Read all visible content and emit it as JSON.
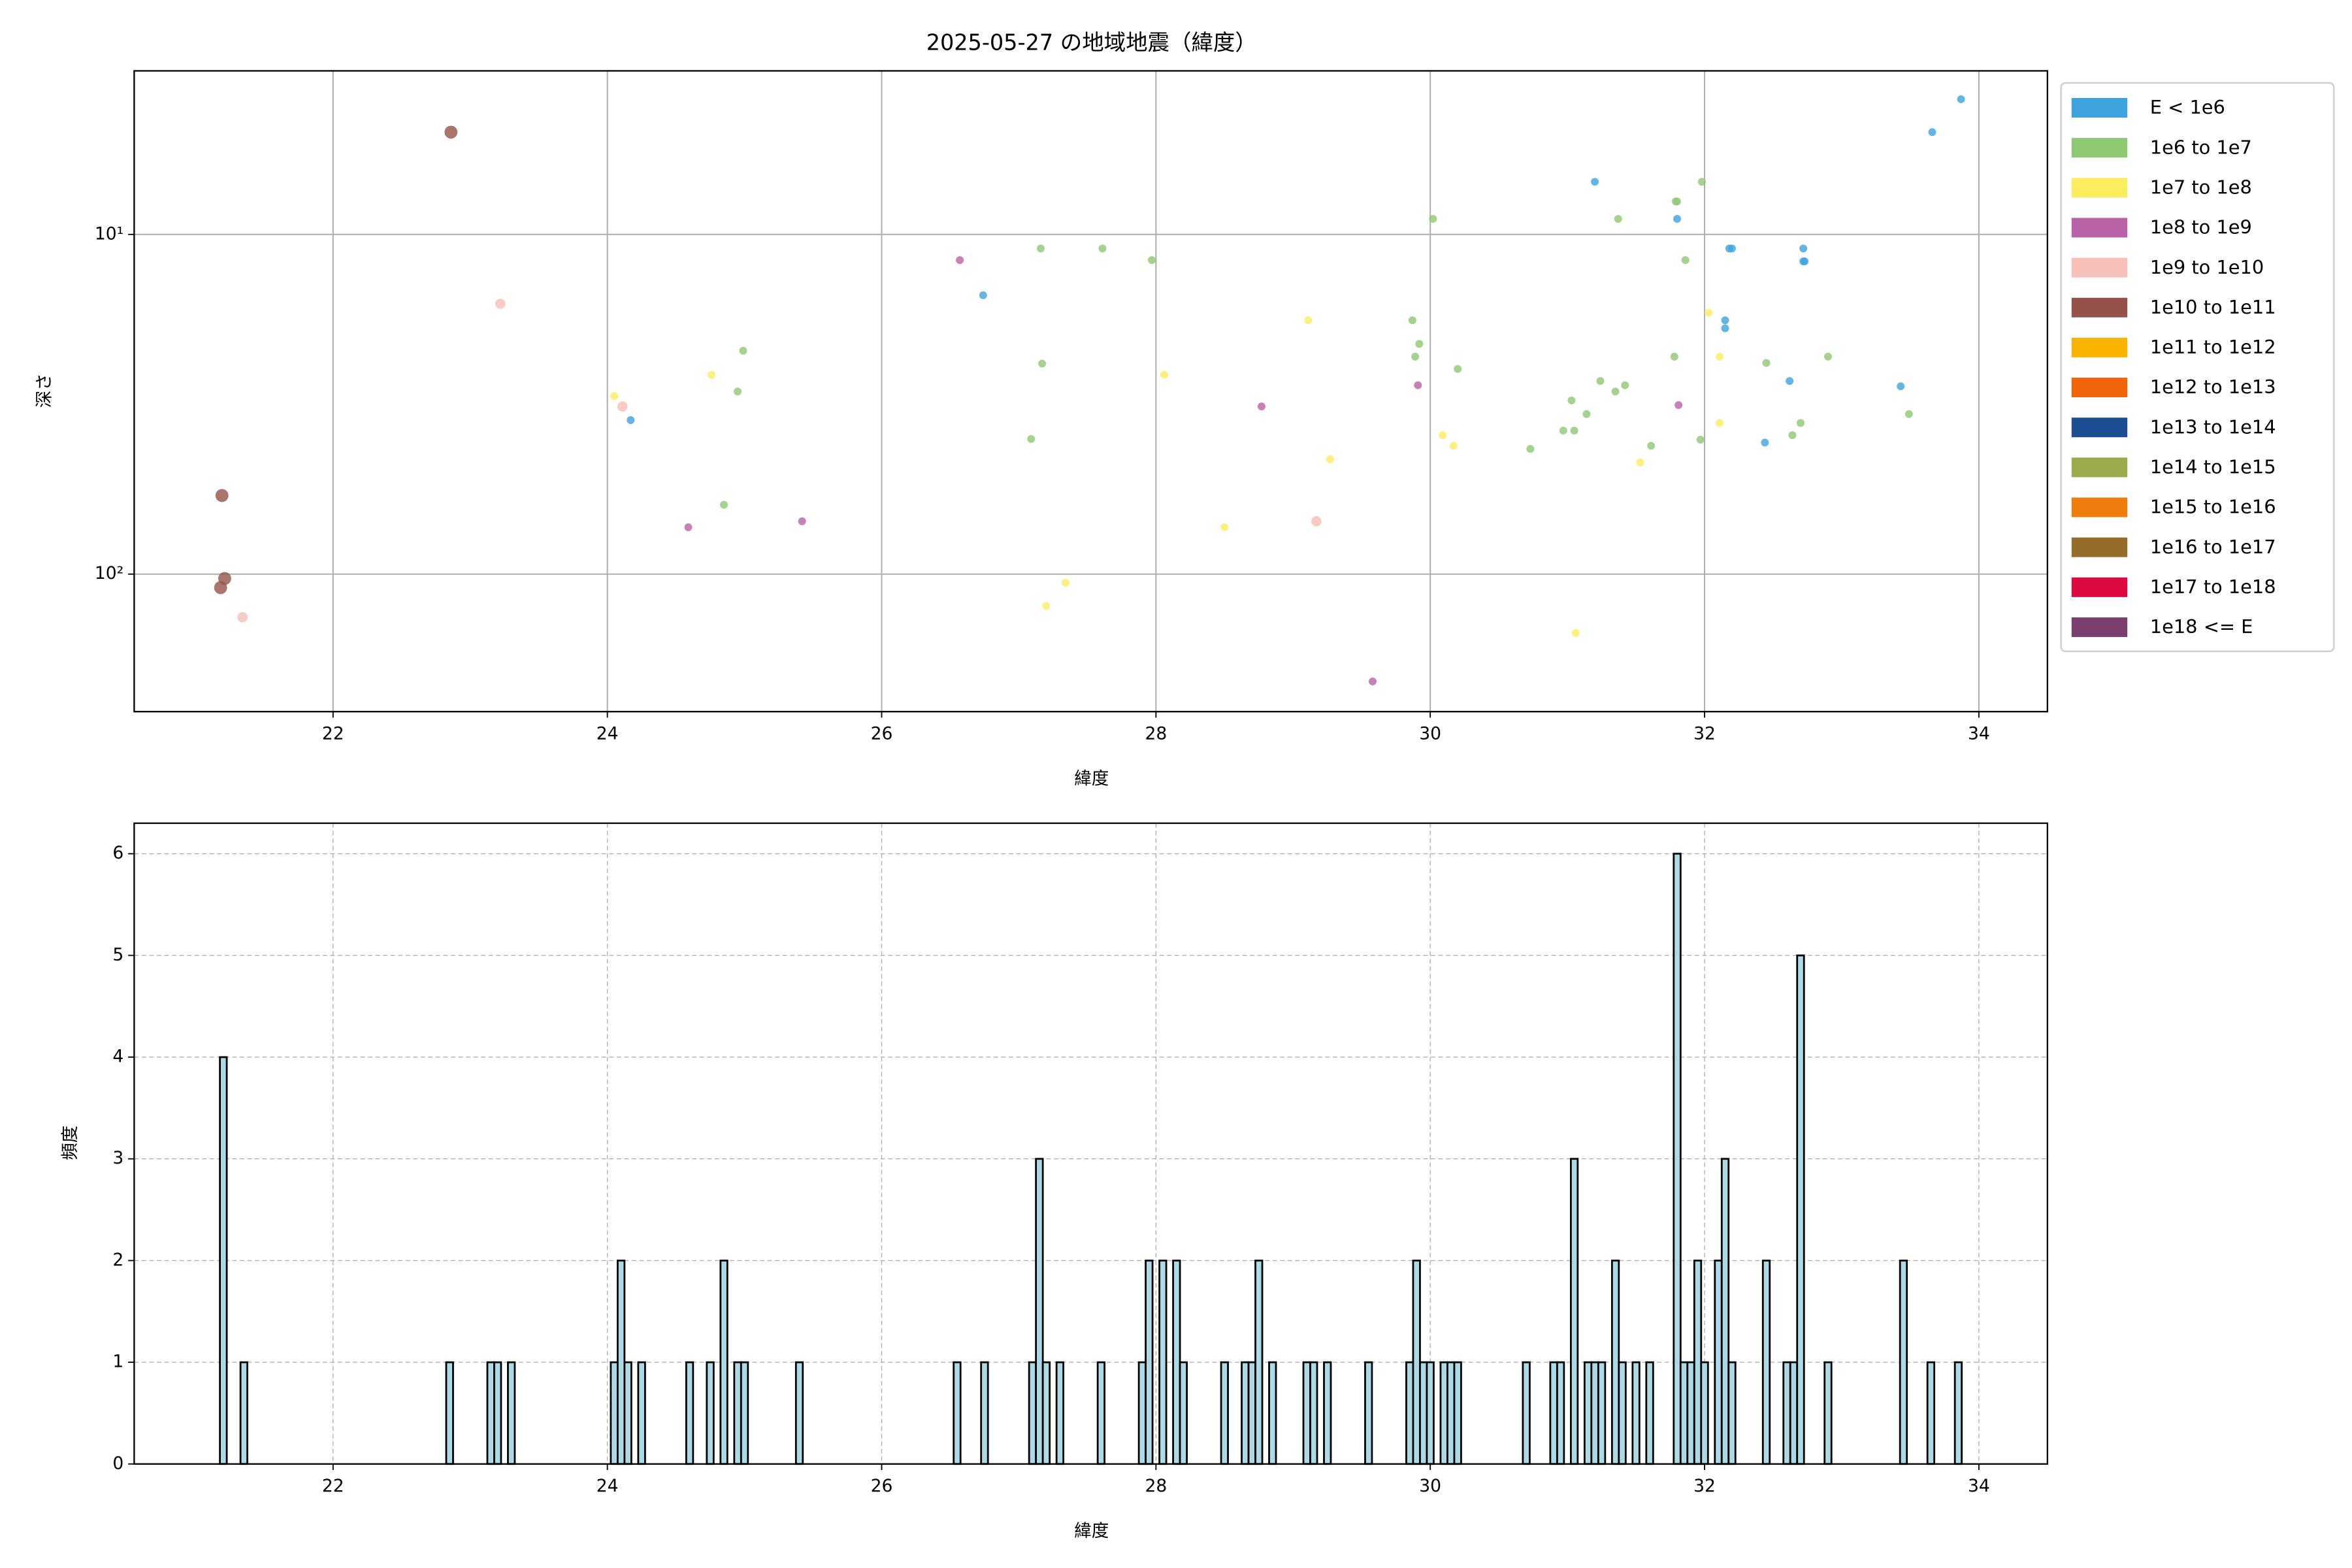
{
  "chart_data": [
    {
      "type": "scatter",
      "title": "2025-05-27 の地域地震（緯度）",
      "xlabel": "緯度",
      "ylabel": "深さ",
      "xlim": [
        20.55,
        34.5
      ],
      "xticks": [
        22,
        24,
        26,
        28,
        30,
        32,
        34
      ],
      "ylim": [
        3.3,
        254
      ],
      "yticks": [
        {
          "value": 10,
          "label": "10¹"
        },
        {
          "value": 100,
          "label": "10²"
        }
      ],
      "yscale": "log",
      "y_inverted": true,
      "grid": true,
      "legend": "outside-right",
      "series": [
        {
          "name": "E < 1e6",
          "color": "#3ea2dc",
          "x": [
            31.2,
            26.74,
            24.17,
            31.8,
            32.15,
            32.15,
            32.18,
            32.2,
            32.62,
            32.72,
            32.72,
            32.73,
            32.44,
            33.43,
            33.66,
            33.87
          ],
          "y": [
            7.0,
            15.1,
            35.2,
            9.0,
            17.9,
            18.9,
            11.0,
            11.0,
            27.0,
            11.0,
            12.0,
            12.0,
            41.0,
            28.0,
            5.0,
            4.0
          ]
        },
        {
          "name": "1e6 to 1e7",
          "color": "#8fc873",
          "x": [
            24.85,
            24.95,
            24.99,
            27.09,
            27.16,
            27.17,
            27.61,
            27.97,
            29.87,
            29.92,
            29.89,
            30.02,
            30.2,
            30.73,
            30.97,
            31.03,
            31.05,
            31.14,
            31.24,
            31.35,
            31.37,
            31.42,
            31.61,
            31.78,
            31.79,
            31.8,
            31.86,
            31.97,
            31.98,
            32.45,
            32.64,
            32.7,
            32.9,
            33.49
          ],
          "y": [
            62.5,
            29.0,
            22.0,
            40.0,
            11.0,
            24.0,
            11.0,
            11.9,
            17.9,
            21.0,
            22.9,
            9.0,
            24.9,
            42.8,
            37.8,
            30.8,
            37.8,
            33.8,
            27.0,
            29.0,
            9.0,
            27.8,
            41.9,
            22.9,
            8.0,
            8.0,
            11.9,
            40.2,
            7.0,
            23.9,
            39.0,
            35.9,
            22.9,
            33.8
          ]
        },
        {
          "name": "1e7 to 1e8",
          "color": "#fcec60",
          "x": [
            24.05,
            24.76,
            27.2,
            27.34,
            28.06,
            28.5,
            29.11,
            29.27,
            30.09,
            30.17,
            31.06,
            31.53,
            32.03,
            32.11,
            32.11
          ],
          "y": [
            29.9,
            25.9,
            124,
            106,
            25.9,
            72.8,
            17.9,
            45.9,
            39.0,
            41.9,
            149,
            46.9,
            17.0,
            22.9,
            35.9
          ]
        },
        {
          "name": "1e8 to 1e9",
          "color": "#b962a7",
          "x": [
            24.59,
            25.42,
            26.57,
            28.77,
            29.58,
            29.91,
            31.81
          ],
          "y": [
            72.8,
            69.9,
            11.9,
            32.1,
            207,
            27.8,
            31.8
          ]
        },
        {
          "name": "1e9 to 1e10",
          "color": "#f6bfb8",
          "x": [
            21.34,
            23.22,
            24.11,
            29.17
          ],
          "y": [
            134,
            16.0,
            32.1,
            69.9
          ]
        },
        {
          "name": "1e10 to 1e11",
          "color": "#94524a",
          "x": [
            21.19,
            21.18,
            21.21,
            22.86
          ],
          "y": [
            58.7,
            109.6,
            103,
            5.0
          ]
        },
        {
          "name": "1e11 to 1e12",
          "color": "#f8b400",
          "x": [],
          "y": []
        },
        {
          "name": "1e12 to 1e13",
          "color": "#ef6309",
          "x": [],
          "y": []
        },
        {
          "name": "1e13 to 1e14",
          "color": "#1c4c92",
          "x": [],
          "y": []
        },
        {
          "name": "1e14 to 1e15",
          "color": "#9aab4c",
          "x": [],
          "y": []
        },
        {
          "name": "1e15 to 1e16",
          "color": "#ef7d0e",
          "x": [],
          "y": []
        },
        {
          "name": "1e16 to 1e17",
          "color": "#956d2b",
          "x": [],
          "y": []
        },
        {
          "name": "1e17 to 1e18",
          "color": "#dc0a3e",
          "x": [],
          "y": []
        },
        {
          "name": "1e18 <= E",
          "color": "#7a3f6e",
          "x": [],
          "y": []
        }
      ]
    },
    {
      "type": "histogram",
      "xlabel": "緯度",
      "ylabel": "頻度",
      "color": "#add8e6",
      "edgecolor": "#000000",
      "xlim": [
        20.55,
        34.5
      ],
      "xticks": [
        22,
        24,
        26,
        28,
        30,
        32,
        34
      ],
      "ylim": [
        0,
        6.3
      ],
      "yticks": [
        0,
        1,
        2,
        3,
        4,
        5,
        6
      ],
      "grid": true,
      "grid_style": "dashed",
      "bins": [
        21.175,
        21.225,
        21.325,
        21.375,
        22.825,
        22.875,
        23.125,
        23.175,
        23.225,
        23.275,
        23.325,
        24.025,
        24.075,
        24.125,
        24.175,
        24.225,
        24.275,
        24.575,
        24.625,
        24.725,
        24.775,
        24.825,
        24.875,
        24.925,
        24.975,
        25.025,
        25.375,
        25.425,
        26.525,
        26.575,
        26.725,
        26.775,
        27.075,
        27.125,
        27.175,
        27.225,
        27.275,
        27.325,
        27.575,
        27.625,
        27.875,
        27.925,
        27.975,
        28.025,
        28.075,
        28.125,
        28.175,
        28.225,
        28.475,
        28.525,
        28.625,
        28.675,
        28.725,
        28.775,
        28.825,
        28.875,
        29.075,
        29.125,
        29.175,
        29.225,
        29.275,
        29.525,
        29.575,
        29.825,
        29.875,
        29.925,
        29.975,
        30.025,
        30.075,
        30.125,
        30.175,
        30.225,
        30.675,
        30.725,
        30.875,
        30.925,
        30.975,
        31.025,
        31.075,
        31.125,
        31.175,
        31.225,
        31.275,
        31.325,
        31.375,
        31.425,
        31.475,
        31.525,
        31.575,
        31.625,
        31.775,
        31.825,
        31.875,
        31.925,
        31.975,
        32.025,
        32.075,
        32.125,
        32.175,
        32.225,
        32.425,
        32.475,
        32.575,
        32.625,
        32.675,
        32.725,
        32.875,
        32.925,
        33.425,
        33.475,
        33.625,
        33.675,
        33.825,
        33.875
      ],
      "values": [
        4,
        0,
        1,
        0,
        1,
        0,
        1,
        1,
        0,
        1,
        0,
        1,
        2,
        1,
        0,
        1,
        0,
        1,
        0,
        1,
        0,
        2,
        0,
        1,
        1,
        0,
        1,
        0,
        1,
        0,
        1,
        0,
        1,
        3,
        1,
        0,
        1,
        0,
        1,
        0,
        1,
        2,
        0,
        2,
        0,
        2,
        1,
        0,
        1,
        0,
        1,
        1,
        2,
        0,
        1,
        0,
        1,
        1,
        0,
        1,
        0,
        1,
        0,
        1,
        2,
        1,
        1,
        0,
        1,
        1,
        1,
        0,
        1,
        0,
        1,
        1,
        0,
        3,
        0,
        1,
        1,
        1,
        0,
        2,
        1,
        0,
        1,
        0,
        1,
        0,
        6,
        1,
        1,
        2,
        1,
        0,
        2,
        3,
        1,
        0,
        2,
        0,
        1,
        1,
        5,
        0,
        1,
        0,
        2,
        0,
        1,
        0,
        1
      ]
    }
  ]
}
